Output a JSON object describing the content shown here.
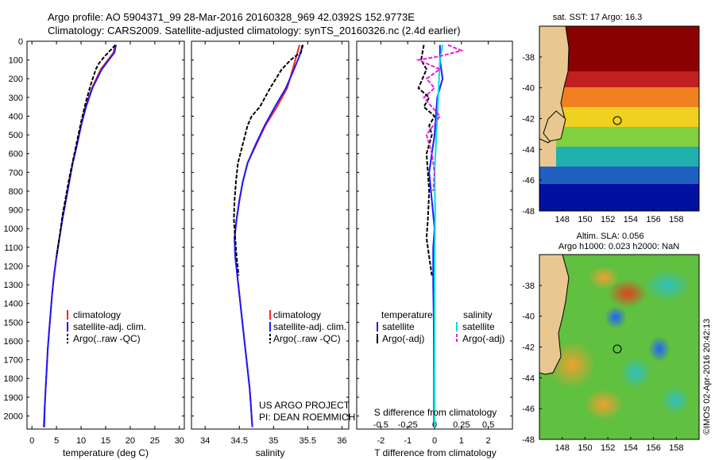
{
  "header": {
    "line1": "Argo profile: AO 5904371_99 28-Mar-2016 20160328_969 42.0392S 152.9773E",
    "line2": "Climatology: CARS2009. Satellite-adjusted climatology: synTS_20160326.nc (2.4d earlier)"
  },
  "colors": {
    "climatology": "#ff2020",
    "satellite": "#1a1aff",
    "argo": "#000000",
    "satellite_salinity": "#00e0e0",
    "argo_salinity": "#e020e0"
  },
  "chart_data": [
    {
      "type": "line",
      "name": "temperature-profile",
      "xlabel": "temperature (deg C)",
      "xlim": [
        -1,
        31
      ],
      "xticks": [
        0,
        5,
        10,
        15,
        20,
        25,
        30
      ],
      "ylim": [
        2070,
        0
      ],
      "yticks": [
        0,
        100,
        200,
        300,
        400,
        500,
        600,
        700,
        800,
        900,
        1000,
        1100,
        1200,
        1300,
        1400,
        1500,
        1600,
        1700,
        1800,
        1900,
        2000
      ],
      "legend": [
        "climatology",
        "satellite-adj. clim.",
        "Argo(..raw -QC)"
      ],
      "legend_position": "bottom-center",
      "series": [
        {
          "name": "climatology",
          "color": "red",
          "x": [
            16.9,
            16.6,
            14.0,
            12.2,
            10.9,
            10.0,
            9.2,
            8.3,
            7.6,
            6.9,
            6.2,
            5.6,
            5.0,
            4.5,
            4.1,
            3.8,
            3.5,
            3.2,
            3.0,
            2.8,
            2.6,
            2.4
          ],
          "depth": [
            20,
            60,
            150,
            250,
            350,
            450,
            550,
            650,
            750,
            850,
            950,
            1050,
            1150,
            1250,
            1350,
            1450,
            1550,
            1650,
            1750,
            1850,
            1950,
            2060
          ]
        },
        {
          "name": "satellite",
          "color": "blue",
          "x": [
            17.1,
            16.8,
            14.2,
            12.3,
            11.0,
            10.0,
            9.2,
            8.3,
            7.6,
            6.9,
            6.2,
            5.6,
            5.0,
            4.5,
            4.1,
            3.8,
            3.5,
            3.2,
            3.0,
            2.8,
            2.6,
            2.5
          ],
          "depth": [
            20,
            60,
            150,
            250,
            350,
            450,
            550,
            650,
            750,
            850,
            950,
            1050,
            1150,
            1250,
            1350,
            1450,
            1550,
            1650,
            1750,
            1850,
            1950,
            2060
          ]
        },
        {
          "name": "argo",
          "color": "black",
          "x": [
            17.0,
            14.8,
            13.6,
            13.0,
            12.0,
            11.0,
            10.0,
            9.2,
            8.4,
            7.6,
            6.9,
            6.2,
            5.6,
            5.0
          ],
          "depth": [
            20,
            80,
            120,
            150,
            230,
            320,
            430,
            530,
            630,
            730,
            830,
            930,
            1050,
            1150
          ]
        }
      ]
    },
    {
      "type": "line",
      "name": "salinity-profile",
      "xlabel": "salinity",
      "xlim": [
        33.8,
        36.1
      ],
      "xticks": [
        34,
        34.5,
        35,
        35.5,
        36
      ],
      "ylim": [
        2070,
        0
      ],
      "legend": [
        "climatology",
        "satellite-adj. clim.",
        "Argo(..raw -QC)"
      ],
      "legend_position": "bottom-center",
      "annotation": [
        "US ARGO PROJECT",
        "PI: DEAN ROEMMICH"
      ],
      "series": [
        {
          "name": "climatology",
          "color": "red",
          "x": [
            35.38,
            35.35,
            35.28,
            35.2,
            35.05,
            34.88,
            34.75,
            34.62,
            34.55,
            34.5,
            34.46,
            34.43,
            34.44,
            34.47,
            34.5,
            34.53,
            34.56,
            34.59,
            34.62,
            34.65,
            34.67,
            34.69
          ],
          "depth": [
            20,
            60,
            150,
            250,
            350,
            450,
            550,
            650,
            750,
            850,
            950,
            1050,
            1150,
            1250,
            1350,
            1450,
            1550,
            1650,
            1750,
            1850,
            1950,
            2060
          ]
        },
        {
          "name": "satellite",
          "color": "blue",
          "x": [
            35.42,
            35.4,
            35.3,
            35.18,
            35.02,
            34.87,
            34.74,
            34.62,
            34.55,
            34.5,
            34.46,
            34.43,
            34.44,
            34.47,
            34.5,
            34.53,
            34.56,
            34.59,
            34.62,
            34.65,
            34.67,
            34.69
          ],
          "depth": [
            20,
            60,
            150,
            250,
            350,
            450,
            550,
            650,
            750,
            850,
            950,
            1050,
            1150,
            1250,
            1350,
            1450,
            1550,
            1650,
            1750,
            1850,
            1950,
            2060
          ]
        },
        {
          "name": "argo",
          "color": "black",
          "x": [
            35.43,
            35.4,
            35.32,
            35.25,
            35.12,
            34.95,
            34.8,
            34.68,
            34.62,
            34.55,
            34.48,
            34.45,
            34.43,
            34.42,
            34.44,
            34.46,
            34.49
          ],
          "depth": [
            20,
            60,
            80,
            100,
            150,
            250,
            350,
            400,
            450,
            550,
            650,
            750,
            850,
            950,
            1050,
            1150,
            1250
          ]
        }
      ]
    },
    {
      "type": "line",
      "name": "difference-profile",
      "xlabel": "T difference from climatology",
      "xlabel_top": "S difference from climatology",
      "xlim": [
        -2.9,
        2.9
      ],
      "xticks": [
        -2,
        -1,
        0,
        1,
        2
      ],
      "xticks_top_labels": [
        "-0.5",
        "-0.25",
        "0",
        "0.25",
        "0.5"
      ],
      "xticks_top": [
        -2,
        -1,
        0,
        1,
        2
      ],
      "ylim": [
        2070,
        0
      ],
      "legend_temperature": [
        "temperature",
        "satellite",
        "Argo(-adj)"
      ],
      "legend_salinity": [
        "salinity",
        "satellite",
        "Argo(-adj)"
      ],
      "series": [
        {
          "name": "T satellite",
          "color": "blue",
          "x": [
            0.2,
            0.2,
            0.3,
            0.1,
            0.05,
            0.0,
            -0.1,
            -0.2,
            -0.1,
            0.0,
            -0.05,
            -0.05,
            -0.03,
            -0.02,
            -0.02
          ],
          "depth": [
            20,
            100,
            200,
            300,
            400,
            500,
            600,
            700,
            850,
            1000,
            1100,
            1300,
            1500,
            1800,
            2060
          ]
        },
        {
          "name": "T Argo",
          "color": "black",
          "x": [
            -0.4,
            -0.5,
            -0.3,
            -0.6,
            -0.2,
            -0.4,
            0.0,
            -0.2,
            -0.1,
            -0.3,
            -0.2,
            -0.25,
            -0.3,
            -0.2,
            -0.1
          ],
          "depth": [
            20,
            100,
            150,
            250,
            300,
            350,
            400,
            450,
            500,
            600,
            800,
            950,
            1050,
            1150,
            1250
          ]
        },
        {
          "name": "S satellite",
          "color": "cyan",
          "x": [
            0.3,
            0.2,
            0.15,
            0.1,
            0.05,
            0.0,
            0.02,
            0.0,
            0.0,
            0.0,
            0.0
          ],
          "depth": [
            20,
            100,
            250,
            400,
            550,
            700,
            900,
            1200,
            1500,
            1800,
            2060
          ]
        },
        {
          "name": "S Argo",
          "color": "magenta",
          "x": [
            0.5,
            1.0,
            0.2,
            -0.6,
            0.2,
            -0.3,
            0.0,
            -0.4,
            0.2,
            -0.3,
            -0.1,
            0.0,
            -0.05
          ],
          "depth": [
            20,
            50,
            80,
            100,
            150,
            200,
            250,
            300,
            400,
            500,
            600,
            700,
            800
          ]
        }
      ]
    },
    {
      "type": "heatmap",
      "name": "sst-map",
      "title": "sat. SST: 17 Argo: 16.3",
      "xticks": [
        148,
        150,
        152,
        154,
        156,
        158
      ],
      "yticks": [
        -38,
        -40,
        -42,
        -44,
        -46,
        -48
      ],
      "xlim": [
        146,
        160
      ],
      "ylim": [
        -48,
        -36
      ],
      "marker": {
        "lon": 152.98,
        "lat": -42.04
      }
    },
    {
      "type": "heatmap",
      "name": "sla-map",
      "title": "Altim. SLA: 0.056",
      "subtitle": "Argo h1000: 0.023 h2000: NaN",
      "xticks": [
        148,
        150,
        152,
        154,
        156,
        158
      ],
      "yticks": [
        -38,
        -40,
        -42,
        -44,
        -46,
        -48
      ],
      "xlim": [
        146,
        160
      ],
      "ylim": [
        -48,
        -36
      ],
      "marker": {
        "lon": 152.98,
        "lat": -42.04
      }
    }
  ],
  "watermark": "©IMOS 02-Apr-2016 20:42:13"
}
